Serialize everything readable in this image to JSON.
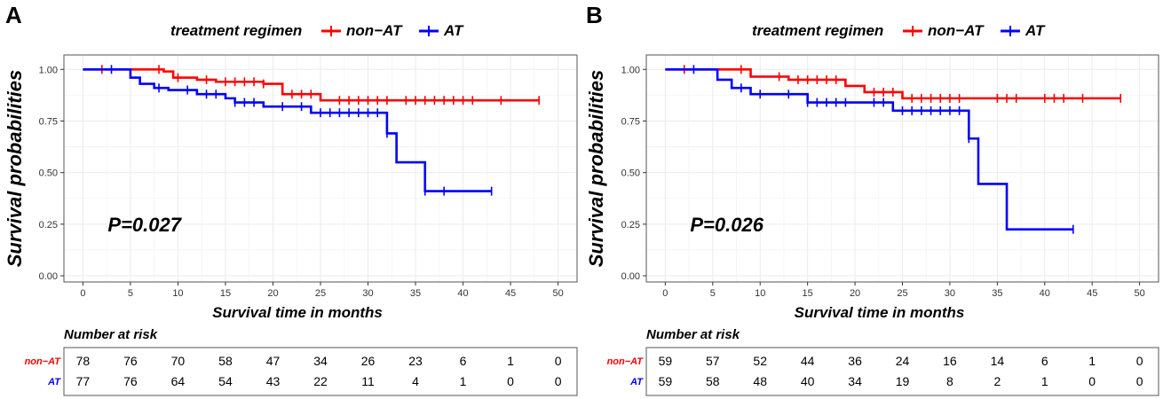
{
  "colors": {
    "non_at": "#ff0000",
    "at": "#0000ff",
    "grid": "#ebebeb",
    "frame": "#555555"
  },
  "chart_data": [
    {
      "type": "line",
      "panel_label": "A",
      "legend_title": "treatment regimen",
      "legend_labels": [
        "non−AT",
        "AT"
      ],
      "xlabel": "Survival time in months",
      "ylabel": "Survival probabilities",
      "xlim": [
        -2,
        52
      ],
      "ylim": [
        -0.03,
        1.07
      ],
      "x_ticks": [
        0,
        5,
        10,
        15,
        20,
        25,
        30,
        35,
        40,
        45,
        50
      ],
      "x_tick_labels": [
        "0",
        "5",
        "10",
        "15",
        "20",
        "25",
        "30",
        "35",
        "40",
        "45",
        "50"
      ],
      "y_ticks": [
        0,
        0.25,
        0.5,
        0.75,
        1.0
      ],
      "y_tick_labels": [
        "0.00",
        "0.25",
        "0.50",
        "0.75",
        "1.00"
      ],
      "pvalue": "P=0.027",
      "series": [
        {
          "name": "non−AT",
          "color": "#ff0000",
          "steps": [
            [
              0,
              1.0
            ],
            [
              8.5,
              0.99
            ],
            [
              9.5,
              0.96
            ],
            [
              12,
              0.95
            ],
            [
              14,
              0.94
            ],
            [
              19,
              0.93
            ],
            [
              21,
              0.88
            ],
            [
              25,
              0.85
            ],
            [
              48,
              0.85
            ]
          ],
          "censor_times": [
            2,
            8,
            10,
            13,
            15,
            16,
            17,
            18,
            19,
            22,
            23,
            24,
            27,
            28,
            29,
            30,
            31,
            32,
            34,
            35,
            36,
            37,
            38,
            39,
            40,
            41,
            44,
            48
          ]
        },
        {
          "name": "AT",
          "color": "#0000ff",
          "steps": [
            [
              0,
              1.0
            ],
            [
              5,
              0.96
            ],
            [
              6,
              0.93
            ],
            [
              7.5,
              0.91
            ],
            [
              9,
              0.9
            ],
            [
              12,
              0.88
            ],
            [
              15,
              0.86
            ],
            [
              16,
              0.84
            ],
            [
              19,
              0.82
            ],
            [
              24,
              0.79
            ],
            [
              32,
              0.69
            ],
            [
              33,
              0.55
            ],
            [
              36,
              0.41
            ],
            [
              43,
              0.41
            ]
          ],
          "censor_times": [
            3,
            8,
            11,
            13,
            14,
            16,
            17,
            18,
            21,
            23,
            25,
            26,
            27,
            28,
            29,
            30,
            31,
            32,
            36,
            38,
            43
          ]
        }
      ],
      "risk_table": {
        "title": "Number at risk",
        "groups": [
          {
            "name": "non−AT",
            "values": [
              "78",
              "76",
              "70",
              "58",
              "47",
              "34",
              "26",
              "23",
              "6",
              "1",
              "0"
            ]
          },
          {
            "name": "AT",
            "values": [
              "77",
              "76",
              "64",
              "54",
              "43",
              "22",
              "11",
              "4",
              "1",
              "0",
              "0"
            ]
          }
        ]
      }
    },
    {
      "type": "line",
      "panel_label": "B",
      "legend_title": "treatment regimen",
      "legend_labels": [
        "non−AT",
        "AT"
      ],
      "xlabel": "Survival time in months",
      "ylabel": "Survival probabilities",
      "xlim": [
        -2,
        52
      ],
      "ylim": [
        -0.03,
        1.07
      ],
      "x_ticks": [
        0,
        5,
        10,
        15,
        20,
        25,
        30,
        35,
        40,
        45,
        50
      ],
      "x_tick_labels": [
        "0",
        "5",
        "10",
        "15",
        "20",
        "25",
        "30",
        "35",
        "40",
        "45",
        "50"
      ],
      "y_ticks": [
        0,
        0.25,
        0.5,
        0.75,
        1.0
      ],
      "y_tick_labels": [
        "0.00",
        "0.25",
        "0.50",
        "0.75",
        "1.00"
      ],
      "pvalue": "P=0.026",
      "series": [
        {
          "name": "non−AT",
          "color": "#ff0000",
          "steps": [
            [
              0,
              1.0
            ],
            [
              9,
              0.965
            ],
            [
              13,
              0.95
            ],
            [
              19,
              0.92
            ],
            [
              21,
              0.89
            ],
            [
              25,
              0.86
            ],
            [
              48,
              0.86
            ]
          ],
          "censor_times": [
            2,
            8,
            12,
            14,
            15,
            16,
            17,
            18,
            22,
            23,
            24,
            26,
            27,
            28,
            29,
            30,
            31,
            35,
            36,
            37,
            40,
            41,
            42,
            44,
            48
          ]
        },
        {
          "name": "AT",
          "color": "#0000ff",
          "steps": [
            [
              0,
              1.0
            ],
            [
              5.5,
              0.95
            ],
            [
              7,
              0.91
            ],
            [
              9,
              0.88
            ],
            [
              15,
              0.84
            ],
            [
              24,
              0.8
            ],
            [
              32,
              0.665
            ],
            [
              33,
              0.445
            ],
            [
              36,
              0.225
            ],
            [
              43,
              0.225
            ]
          ],
          "censor_times": [
            3,
            8,
            10,
            13,
            15,
            16,
            17,
            18,
            19,
            22,
            23,
            25,
            26,
            27,
            28,
            29,
            30,
            31,
            32,
            43
          ]
        }
      ],
      "risk_table": {
        "title": "Number at risk",
        "groups": [
          {
            "name": "non−AT",
            "values": [
              "59",
              "57",
              "52",
              "44",
              "36",
              "24",
              "16",
              "14",
              "6",
              "1",
              "0"
            ]
          },
          {
            "name": "AT",
            "values": [
              "59",
              "58",
              "48",
              "40",
              "34",
              "19",
              "8",
              "2",
              "1",
              "0",
              "0"
            ]
          }
        ]
      }
    }
  ]
}
